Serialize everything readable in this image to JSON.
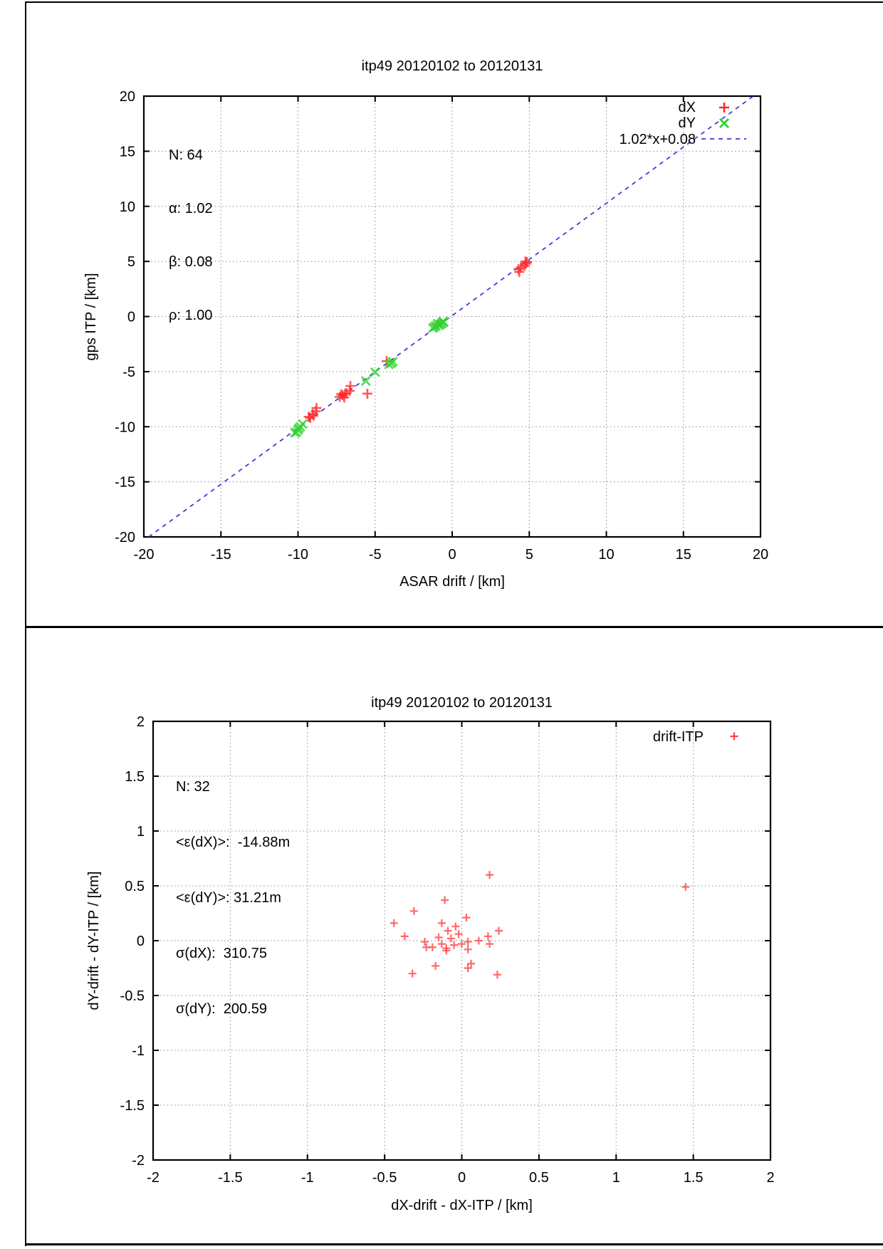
{
  "page": {
    "background": "#ffffff",
    "frame_color": "#000000"
  },
  "chart_data": [
    {
      "type": "scatter",
      "title": "itp49 20120102 to 20120131",
      "xlabel": "ASAR drift / [km]",
      "ylabel": "gps ITP / [km]",
      "xlim": [
        -20,
        20
      ],
      "ylim": [
        -20,
        20
      ],
      "xtick_vals": [
        -20,
        -15,
        -10,
        -5,
        0,
        5,
        10,
        15,
        20
      ],
      "xtick_labels": [
        "-20",
        "-15",
        "-10",
        "-5",
        "0",
        "5",
        "10",
        "15",
        "20"
      ],
      "ytick_vals": [
        -20,
        -15,
        -10,
        -5,
        0,
        5,
        10,
        15,
        20
      ],
      "ytick_labels": [
        "-20",
        "-15",
        "-10",
        "-5",
        "0",
        "5",
        "10",
        "15",
        "20"
      ],
      "grid": true,
      "legend_position": "inside top-right",
      "stats": [
        "N: 64",
        "α: 1.02",
        "β: 0.08",
        "ρ: 1.00"
      ],
      "legend": [
        {
          "label": "dX",
          "marker": "plus",
          "color": "#ff2a2a"
        },
        {
          "label": "dY",
          "marker": "cross",
          "color": "#2fd42f"
        },
        {
          "label": "1.02*x+0.08",
          "marker": "dash",
          "color": "#3434d3"
        }
      ],
      "fit_line": {
        "slope": 1.02,
        "intercept": 0.08,
        "label": "1.02*x+0.08",
        "color": "#3434d3"
      },
      "series": [
        {
          "name": "dX",
          "marker": "plus",
          "color": "#ff2a2a",
          "points": [
            [
              4.35,
              4.05
            ],
            [
              4.3,
              4.3
            ],
            [
              4.45,
              4.45
            ],
            [
              4.7,
              4.6
            ],
            [
              4.8,
              4.8
            ],
            [
              4.85,
              4.95
            ],
            [
              4.75,
              5.0
            ],
            [
              -0.95,
              -0.7
            ],
            [
              -4.25,
              -4.05
            ],
            [
              -5.5,
              -7.0
            ],
            [
              -6.6,
              -6.3
            ],
            [
              -6.65,
              -6.75
            ],
            [
              -6.85,
              -6.95
            ],
            [
              -6.95,
              -7.0
            ],
            [
              -7.1,
              -7.15
            ],
            [
              -7.3,
              -7.3
            ],
            [
              -7.0,
              -7.35
            ],
            [
              -7.2,
              -7.05
            ],
            [
              -8.8,
              -8.3
            ],
            [
              -8.85,
              -8.6
            ],
            [
              -9.05,
              -8.85
            ],
            [
              -9.2,
              -9.2
            ],
            [
              -9.0,
              -9.0
            ],
            [
              -9.3,
              -9.1
            ]
          ]
        },
        {
          "name": "dY",
          "marker": "cross",
          "color": "#2fd42f",
          "points": [
            [
              -0.55,
              -0.5
            ],
            [
              -0.65,
              -0.6
            ],
            [
              -0.75,
              -0.7
            ],
            [
              -0.85,
              -0.8
            ],
            [
              -0.95,
              -0.65
            ],
            [
              -1.05,
              -0.85
            ],
            [
              -1.15,
              -0.95
            ],
            [
              -1.25,
              -1.05
            ],
            [
              -0.6,
              -0.45
            ],
            [
              -3.85,
              -4.1
            ],
            [
              -3.95,
              -4.25
            ],
            [
              -4.1,
              -4.35
            ],
            [
              -5.0,
              -5.05
            ],
            [
              -5.6,
              -5.85
            ],
            [
              -9.7,
              -9.75
            ],
            [
              -9.85,
              -10.0
            ],
            [
              -10.0,
              -10.3
            ],
            [
              -10.1,
              -10.5
            ],
            [
              -9.95,
              -10.15
            ],
            [
              -10.2,
              -10.55
            ]
          ]
        }
      ]
    },
    {
      "type": "scatter",
      "title": "itp49 20120102 to 20120131",
      "xlabel": "dX-drift - dX-ITP / [km]",
      "ylabel": "dY-drift - dY-ITP / [km]",
      "xlim": [
        -2,
        2
      ],
      "ylim": [
        -2,
        2
      ],
      "xtick_vals": [
        -2,
        -1.5,
        -1,
        -0.5,
        0,
        0.5,
        1,
        1.5,
        2
      ],
      "xtick_labels": [
        "-2",
        "-1.5",
        "-1",
        "-0.5",
        "0",
        "0.5",
        "1",
        "1.5",
        "2"
      ],
      "ytick_vals": [
        -2,
        -1.5,
        -1,
        -0.5,
        0,
        0.5,
        1,
        1.5,
        2
      ],
      "ytick_labels": [
        "-2",
        "-1.5",
        "-1",
        "-0.5",
        "0",
        "0.5",
        "1",
        "1.5",
        "2"
      ],
      "grid": true,
      "legend_position": "inside top-right",
      "stats": [
        "N: 32",
        "<ε(dX)>:  -14.88m",
        "<ε(dY)>: 31.21m",
        "σ(dX):  310.75",
        "σ(dY):  200.59"
      ],
      "legend": [
        {
          "label": "drift-ITP",
          "marker": "plus",
          "color": "#ff4444"
        }
      ],
      "series": [
        {
          "name": "drift-ITP",
          "marker": "plus",
          "color": "#ff4444",
          "points": [
            [
              0.18,
              0.6
            ],
            [
              -0.11,
              0.37
            ],
            [
              -0.31,
              0.27
            ],
            [
              -0.44,
              0.16
            ],
            [
              -0.13,
              0.16
            ],
            [
              -0.04,
              0.13
            ],
            [
              0.03,
              0.21
            ],
            [
              -0.09,
              0.09
            ],
            [
              -0.37,
              0.04
            ],
            [
              -0.02,
              0.06
            ],
            [
              -0.15,
              0.03
            ],
            [
              -0.07,
              0.02
            ],
            [
              0.24,
              0.09
            ],
            [
              0.17,
              0.04
            ],
            [
              0.11,
              0.0
            ],
            [
              -0.24,
              -0.01
            ],
            [
              -0.13,
              -0.03
            ],
            [
              0.0,
              -0.03
            ],
            [
              0.04,
              -0.01
            ],
            [
              0.18,
              -0.03
            ],
            [
              -0.23,
              -0.06
            ],
            [
              -0.19,
              -0.06
            ],
            [
              -0.1,
              -0.07
            ],
            [
              0.04,
              -0.08
            ],
            [
              -0.1,
              -0.09
            ],
            [
              -0.05,
              -0.04
            ],
            [
              0.06,
              -0.21
            ],
            [
              0.04,
              -0.25
            ],
            [
              -0.17,
              -0.23
            ],
            [
              -0.32,
              -0.3
            ],
            [
              0.23,
              -0.31
            ],
            [
              1.45,
              0.49
            ]
          ]
        }
      ]
    }
  ]
}
